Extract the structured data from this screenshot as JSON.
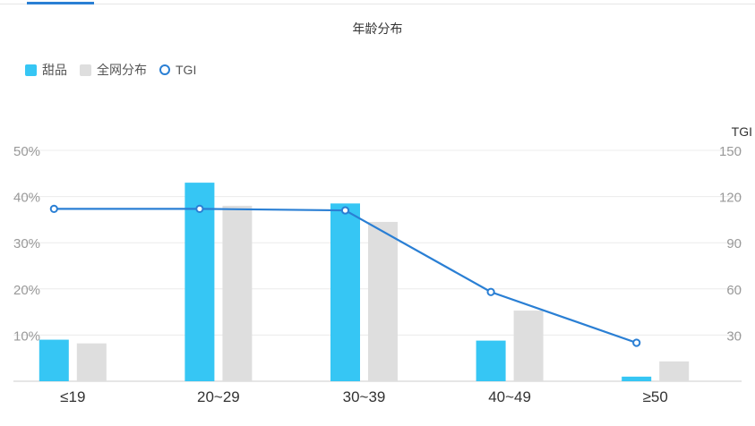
{
  "chart_data": {
    "type": "bar",
    "title": "年龄分布",
    "categories": [
      "≤19",
      "20~29",
      "30~39",
      "40~49",
      "≥50"
    ],
    "series": [
      {
        "name": "甜品",
        "type": "bar",
        "axis": "left",
        "color": "#36c6f4",
        "values": [
          9,
          43,
          38.5,
          8.8,
          1
        ]
      },
      {
        "name": "全网分布",
        "type": "bar",
        "axis": "left",
        "color": "#dedede",
        "values": [
          8.2,
          38,
          34.5,
          15.3,
          4.3
        ]
      },
      {
        "name": "TGI",
        "type": "line",
        "axis": "right",
        "color": "#2a7fd4",
        "values": [
          112,
          112,
          111,
          58,
          25
        ]
      }
    ],
    "y_left": {
      "ticks": [
        "10%",
        "20%",
        "30%",
        "40%",
        "50%"
      ],
      "range": [
        0,
        50
      ]
    },
    "y_right": {
      "title": "TGI",
      "ticks": [
        "30",
        "60",
        "90",
        "120",
        "150"
      ],
      "range": [
        0,
        150
      ]
    },
    "grid": true,
    "legend_position": "top-left"
  }
}
